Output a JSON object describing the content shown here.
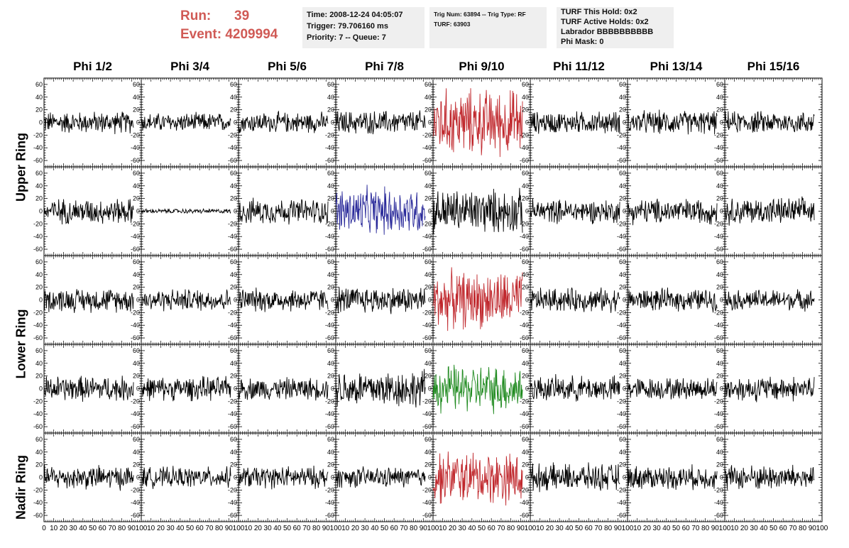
{
  "run": {
    "run_label": "Run:",
    "run_value": "39",
    "event_label": "Event:",
    "event_value": "4209994"
  },
  "info_boxes": [
    {
      "lines": [
        "Time: 2008-12-24 04:05:07",
        "Trigger: 79.706160 ms",
        "Priority: 7 -- Queue: 7"
      ]
    },
    {
      "lines": [
        "Trig Num: 63894 -- Trig Type: RF",
        "",
        "TURF: 63903"
      ]
    },
    {
      "lines": [
        "TURF This Hold: 0x2",
        "TURF Active Holds: 0x2",
        "Labrador BBBBBBBBBB",
        "Phi Mask: 0"
      ]
    }
  ],
  "column_headers": [
    "Phi 1/2",
    "Phi 3/4",
    "Phi 5/6",
    "Phi 7/8",
    "Phi 9/10",
    "Phi 11/12",
    "Phi 13/14",
    "Phi 15/16"
  ],
  "row_labels": [
    "Upper Ring",
    "Lower Ring",
    "Nadir Ring"
  ],
  "colors": {
    "trace_default": "#000000",
    "trace_red": "#c0282d",
    "trace_blue": "#2a2a9a",
    "trace_green": "#1f8a1f",
    "run_text": "#d05a55"
  },
  "chart_data": {
    "type": "line",
    "description_rows": 5,
    "columns": 8,
    "xlim": [
      0,
      100
    ],
    "xticks": [
      0,
      10,
      20,
      30,
      40,
      50,
      60,
      70,
      80,
      90,
      100
    ],
    "xtick_labels": [
      "0",
      "10",
      "20",
      "30",
      "40",
      "50",
      "60",
      "70",
      "80",
      "90",
      "100"
    ],
    "ylim": [
      -70,
      70
    ],
    "yticks": [
      -60,
      -40,
      -20,
      0,
      20,
      40,
      60
    ],
    "ytick_labels": [
      "-60",
      "-40",
      "-20",
      "0",
      "20",
      "40",
      "60"
    ],
    "x_range_samples": [
      0,
      92
    ],
    "panels": [
      [
        {
          "amp": 14,
          "color": "black"
        },
        {
          "amp": 12,
          "color": "black"
        },
        {
          "amp": 13,
          "color": "black"
        },
        {
          "amp": 15,
          "color": "black"
        },
        {
          "amp": 42,
          "color": "red"
        },
        {
          "amp": 14,
          "color": "black"
        },
        {
          "amp": 15,
          "color": "black"
        },
        {
          "amp": 14,
          "color": "black"
        }
      ],
      [
        {
          "amp": 16,
          "color": "black"
        },
        {
          "amp": 3,
          "color": "black"
        },
        {
          "amp": 16,
          "color": "black"
        },
        {
          "amp": 30,
          "color": "blue"
        },
        {
          "amp": 28,
          "color": "black"
        },
        {
          "amp": 15,
          "color": "black"
        },
        {
          "amp": 16,
          "color": "black"
        },
        {
          "amp": 17,
          "color": "black"
        }
      ],
      [
        {
          "amp": 15,
          "color": "black"
        },
        {
          "amp": 14,
          "color": "black"
        },
        {
          "amp": 15,
          "color": "black"
        },
        {
          "amp": 17,
          "color": "black"
        },
        {
          "amp": 36,
          "color": "red"
        },
        {
          "amp": 15,
          "color": "black"
        },
        {
          "amp": 14,
          "color": "black"
        },
        {
          "amp": 13,
          "color": "black"
        }
      ],
      [
        {
          "amp": 16,
          "color": "black"
        },
        {
          "amp": 15,
          "color": "black"
        },
        {
          "amp": 14,
          "color": "black"
        },
        {
          "amp": 24,
          "color": "black"
        },
        {
          "amp": 30,
          "color": "green"
        },
        {
          "amp": 16,
          "color": "black"
        },
        {
          "amp": 14,
          "color": "black"
        },
        {
          "amp": 16,
          "color": "black"
        }
      ],
      [
        {
          "amp": 15,
          "color": "black"
        },
        {
          "amp": 13,
          "color": "black"
        },
        {
          "amp": 14,
          "color": "black"
        },
        {
          "amp": 13,
          "color": "black"
        },
        {
          "amp": 33,
          "color": "red"
        },
        {
          "amp": 17,
          "color": "black"
        },
        {
          "amp": 15,
          "color": "black"
        },
        {
          "amp": 16,
          "color": "black"
        }
      ]
    ]
  }
}
